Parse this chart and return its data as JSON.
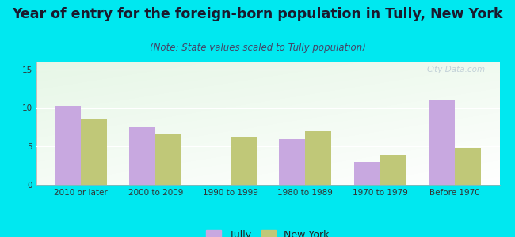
{
  "title": "Year of entry for the foreign-born population in Tully, New York",
  "subtitle": "(Note: State values scaled to Tully population)",
  "categories": [
    "2010 or later",
    "2000 to 2009",
    "1990 to 1999",
    "1980 to 1989",
    "1970 to 1979",
    "Before 1970"
  ],
  "tully_values": [
    10.3,
    7.5,
    0,
    6.0,
    3.0,
    11.0
  ],
  "newyork_values": [
    8.5,
    6.6,
    6.3,
    7.0,
    3.9,
    4.8
  ],
  "tully_color": "#c8a8e0",
  "newyork_color": "#c0c878",
  "background_color": "#00e8f0",
  "ylim": [
    0,
    16
  ],
  "yticks": [
    0,
    5,
    10,
    15
  ],
  "bar_width": 0.35,
  "title_fontsize": 12.5,
  "subtitle_fontsize": 8.5,
  "tick_fontsize": 7.5,
  "legend_fontsize": 9,
  "watermark": "City-Data.com"
}
